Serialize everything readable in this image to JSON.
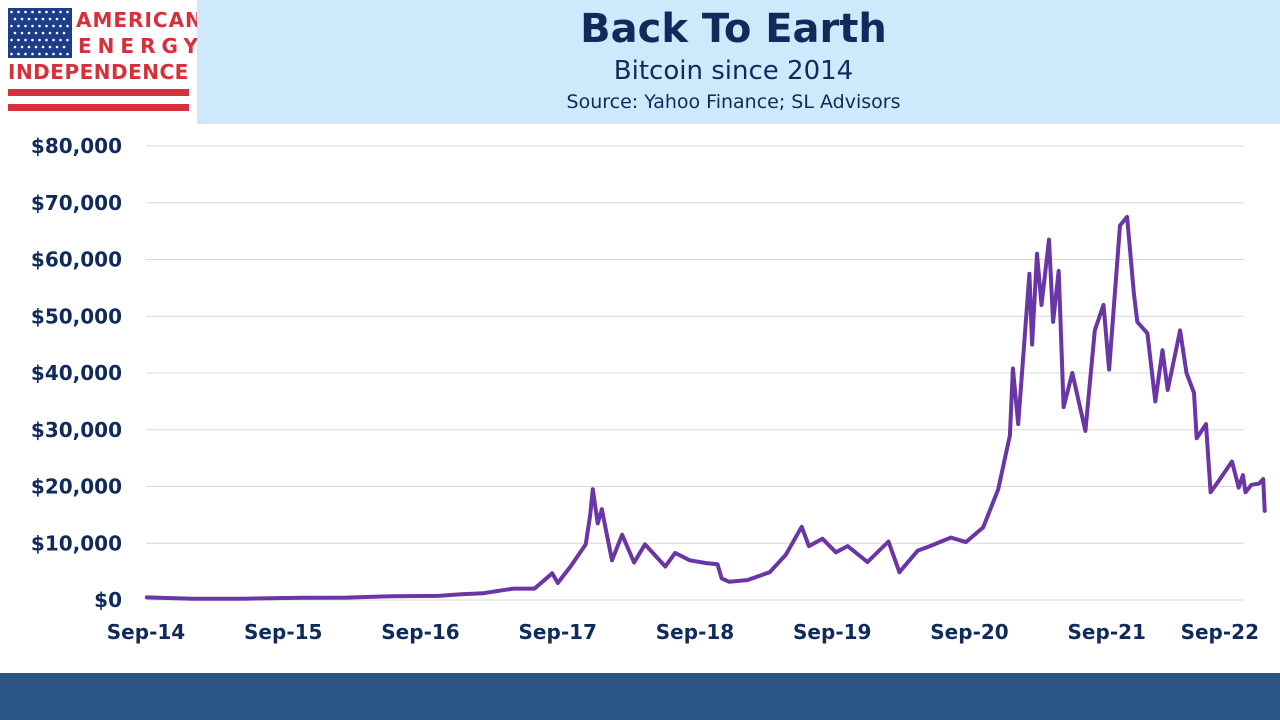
{
  "logo": {
    "line1": "AMERICAN",
    "line2": "ENERGY",
    "line3": "INDEPENDENCE",
    "flag_blue": "#1c3e8a",
    "red": "#d6303a"
  },
  "header": {
    "title": "Back To Earth",
    "subtitle": "Bitcoin since 2014",
    "source": "Source: Yahoo Finance; SL Advisors"
  },
  "chart_data": {
    "type": "line",
    "title": "Back To Earth",
    "subtitle": "Bitcoin since 2014",
    "xlabel": "",
    "ylabel": "",
    "x_ticks": [
      "Sep-14",
      "Sep-15",
      "Sep-16",
      "Sep-17",
      "Sep-18",
      "Sep-19",
      "Sep-20",
      "Sep-21",
      "Sep-22"
    ],
    "y_ticks": [
      "$0",
      "$10,000",
      "$20,000",
      "$30,000",
      "$40,000",
      "$50,000",
      "$60,000",
      "$70,000",
      "$80,000"
    ],
    "ylim": [
      0,
      80000
    ],
    "grid": "horizontal",
    "line_color": "#6a35a5",
    "series": [
      {
        "name": "",
        "points": [
          [
            "2014-09-17",
            450
          ],
          [
            "2015-01-15",
            210
          ],
          [
            "2015-06-01",
            230
          ],
          [
            "2015-11-04",
            400
          ],
          [
            "2016-03-01",
            430
          ],
          [
            "2016-07-01",
            670
          ],
          [
            "2016-11-01",
            730
          ],
          [
            "2017-01-01",
            1000
          ],
          [
            "2017-03-01",
            1200
          ],
          [
            "2017-05-20",
            2000
          ],
          [
            "2017-07-15",
            2000
          ],
          [
            "2017-08-31",
            4700
          ],
          [
            "2017-09-15",
            3000
          ],
          [
            "2017-10-20",
            6000
          ],
          [
            "2017-11-28",
            9800
          ],
          [
            "2017-12-10",
            15000
          ],
          [
            "2017-12-17",
            19500
          ],
          [
            "2017-12-30",
            13500
          ],
          [
            "2018-01-10",
            16000
          ],
          [
            "2018-02-06",
            7000
          ],
          [
            "2018-03-05",
            11500
          ],
          [
            "2018-04-06",
            6600
          ],
          [
            "2018-05-05",
            9800
          ],
          [
            "2018-06-28",
            5900
          ],
          [
            "2018-07-24",
            8300
          ],
          [
            "2018-09-01",
            7000
          ],
          [
            "2018-10-15",
            6500
          ],
          [
            "2018-11-14",
            6300
          ],
          [
            "2018-11-25",
            3800
          ],
          [
            "2018-12-15",
            3200
          ],
          [
            "2019-02-01",
            3500
          ],
          [
            "2019-04-02",
            4900
          ],
          [
            "2019-05-15",
            8000
          ],
          [
            "2019-06-26",
            12900
          ],
          [
            "2019-07-15",
            9500
          ],
          [
            "2019-08-20",
            10800
          ],
          [
            "2019-09-25",
            8400
          ],
          [
            "2019-10-26",
            9500
          ],
          [
            "2019-12-18",
            6700
          ],
          [
            "2020-02-12",
            10300
          ],
          [
            "2020-03-12",
            4900
          ],
          [
            "2020-04-30",
            8700
          ],
          [
            "2020-06-01",
            9500
          ],
          [
            "2020-07-27",
            11000
          ],
          [
            "2020-09-05",
            10200
          ],
          [
            "2020-10-21",
            12800
          ],
          [
            "2020-11-30",
            19500
          ],
          [
            "2020-12-31",
            29000
          ],
          [
            "2021-01-08",
            40800
          ],
          [
            "2021-01-22",
            31000
          ],
          [
            "2021-02-21",
            57500
          ],
          [
            "2021-02-28",
            45000
          ],
          [
            "2021-03-13",
            61000
          ],
          [
            "2021-03-25",
            52000
          ],
          [
            "2021-04-14",
            63500
          ],
          [
            "2021-04-25",
            49000
          ],
          [
            "2021-05-10",
            58000
          ],
          [
            "2021-05-23",
            34000
          ],
          [
            "2021-06-15",
            40000
          ],
          [
            "2021-07-20",
            29800
          ],
          [
            "2021-08-14",
            47500
          ],
          [
            "2021-09-06",
            52000
          ],
          [
            "2021-09-21",
            40600
          ],
          [
            "2021-10-20",
            66000
          ],
          [
            "2021-11-08",
            67500
          ],
          [
            "2021-11-26",
            54000
          ],
          [
            "2021-12-05",
            49000
          ],
          [
            "2022-01-01",
            47000
          ],
          [
            "2022-01-22",
            35000
          ],
          [
            "2022-02-10",
            44000
          ],
          [
            "2022-02-24",
            37000
          ],
          [
            "2022-03-29",
            47500
          ],
          [
            "2022-04-15",
            40000
          ],
          [
            "2022-05-05",
            36500
          ],
          [
            "2022-05-12",
            28500
          ],
          [
            "2022-06-06",
            31000
          ],
          [
            "2022-06-18",
            19000
          ],
          [
            "2022-07-10",
            21000
          ],
          [
            "2022-08-14",
            24400
          ],
          [
            "2022-09-01",
            19800
          ],
          [
            "2022-09-12",
            22000
          ],
          [
            "2022-09-19",
            19000
          ],
          [
            "2022-10-05",
            20300
          ],
          [
            "2022-10-25",
            20500
          ],
          [
            "2022-11-05",
            21300
          ],
          [
            "2022-11-09",
            15700
          ]
        ]
      }
    ]
  }
}
